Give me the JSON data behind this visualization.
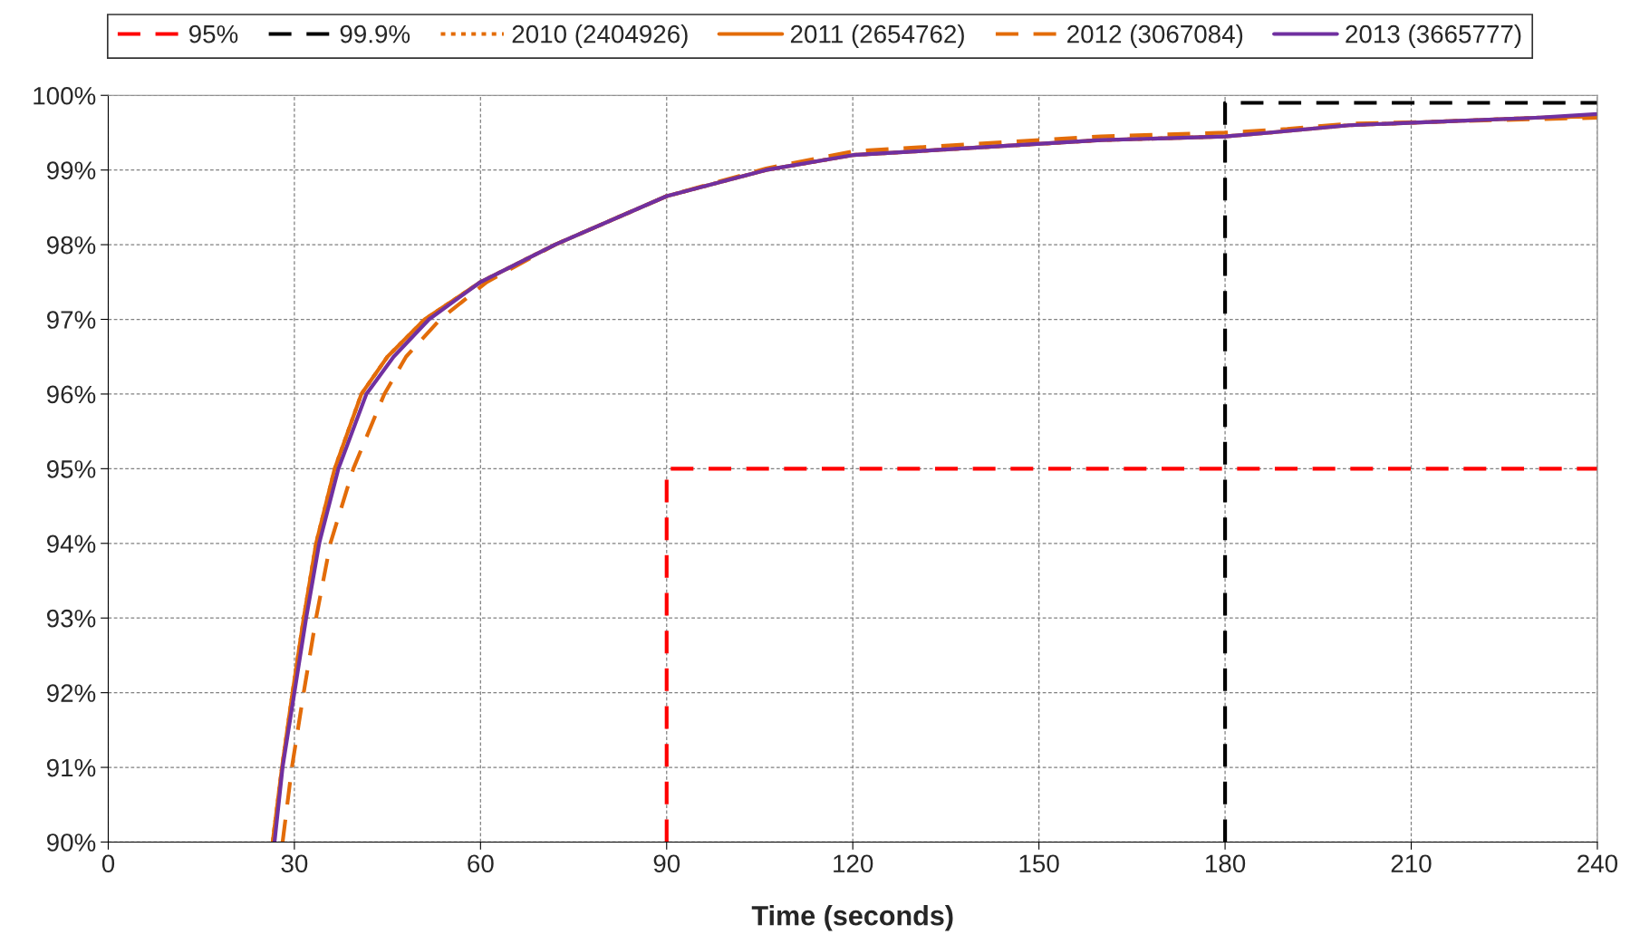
{
  "chart_data": {
    "type": "line",
    "xlabel": "Time (seconds)",
    "xlim": [
      0,
      240
    ],
    "xticks": [
      0,
      30,
      60,
      90,
      120,
      150,
      180,
      210,
      240
    ],
    "ylim": [
      90,
      100
    ],
    "yticks": [
      {
        "value": 90,
        "label": "90%"
      },
      {
        "value": 91,
        "label": "91%"
      },
      {
        "value": 92,
        "label": "92%"
      },
      {
        "value": 93,
        "label": "93%"
      },
      {
        "value": 94,
        "label": "94%"
      },
      {
        "value": 95,
        "label": "95%"
      },
      {
        "value": 96,
        "label": "96%"
      },
      {
        "value": 97,
        "label": "97%"
      },
      {
        "value": 98,
        "label": "98%"
      },
      {
        "value": 99,
        "label": "99%"
      },
      {
        "value": 100,
        "label": "100%"
      }
    ],
    "grid": true,
    "legend": "top",
    "marker": "none",
    "series": [
      {
        "name": "95%",
        "color": "#ff0000",
        "line_style": "dashed",
        "x": [
          90,
          90,
          240
        ],
        "values": [
          90,
          95,
          95
        ]
      },
      {
        "name": "99.9%",
        "color": "#000000",
        "line_style": "dashed",
        "x": [
          180,
          180,
          240
        ],
        "values": [
          90,
          99.9,
          99.9
        ]
      },
      {
        "name": "2010 (2404926)",
        "color": "#e36c09",
        "line_style": "dotted",
        "x": [
          26.5,
          28,
          29.7,
          31.5,
          33.5,
          36.5,
          40.8,
          45,
          51,
          60,
          72,
          90,
          106,
          120,
          140,
          160,
          180,
          187,
          200,
          215,
          230,
          240
        ],
        "values": [
          90,
          91,
          92,
          93,
          94,
          95,
          96,
          96.5,
          97,
          97.5,
          98,
          98.65,
          99,
          99.2,
          99.3,
          99.4,
          99.45,
          99.5,
          99.6,
          99.65,
          99.7,
          99.72
        ]
      },
      {
        "name": "2011 (2654762)",
        "color": "#e36c09",
        "line_style": "solid",
        "x": [
          26.5,
          28,
          29.7,
          31.5,
          33.5,
          36.5,
          40.8,
          45,
          51,
          60,
          72,
          90,
          106,
          120,
          140,
          160,
          180,
          187,
          200,
          215,
          230,
          240
        ],
        "values": [
          90,
          91,
          92,
          93,
          94,
          95,
          96,
          96.5,
          97,
          97.5,
          98,
          98.65,
          99,
          99.2,
          99.3,
          99.4,
          99.45,
          99.5,
          99.6,
          99.65,
          99.7,
          99.72
        ]
      },
      {
        "name": "2012 (3067084)",
        "color": "#e36c09",
        "line_style": "dashed",
        "x": [
          28.1,
          29.6,
          31.5,
          33.5,
          35.8,
          39.5,
          44.5,
          48,
          53.5,
          61,
          72,
          90,
          106,
          120,
          140,
          160,
          180,
          190,
          200,
          215,
          230,
          240
        ],
        "values": [
          90,
          91,
          92,
          93,
          94,
          95,
          96,
          96.5,
          97,
          97.5,
          98,
          98.65,
          99.02,
          99.25,
          99.35,
          99.45,
          99.5,
          99.55,
          99.62,
          99.65,
          99.68,
          99.7
        ]
      },
      {
        "name": "2013 (3665777)",
        "color": "#7030a0",
        "line_style": "solid",
        "x": [
          26.8,
          28.1,
          30,
          31.9,
          34,
          37.1,
          41.6,
          46,
          51.7,
          60,
          72,
          90,
          106,
          120,
          140,
          160,
          180,
          187,
          200,
          215,
          230,
          240
        ],
        "values": [
          90,
          91,
          92,
          93,
          94,
          95,
          96,
          96.5,
          97,
          97.5,
          98,
          98.65,
          99,
          99.2,
          99.3,
          99.4,
          99.45,
          99.5,
          99.6,
          99.65,
          99.7,
          99.75
        ]
      }
    ]
  }
}
